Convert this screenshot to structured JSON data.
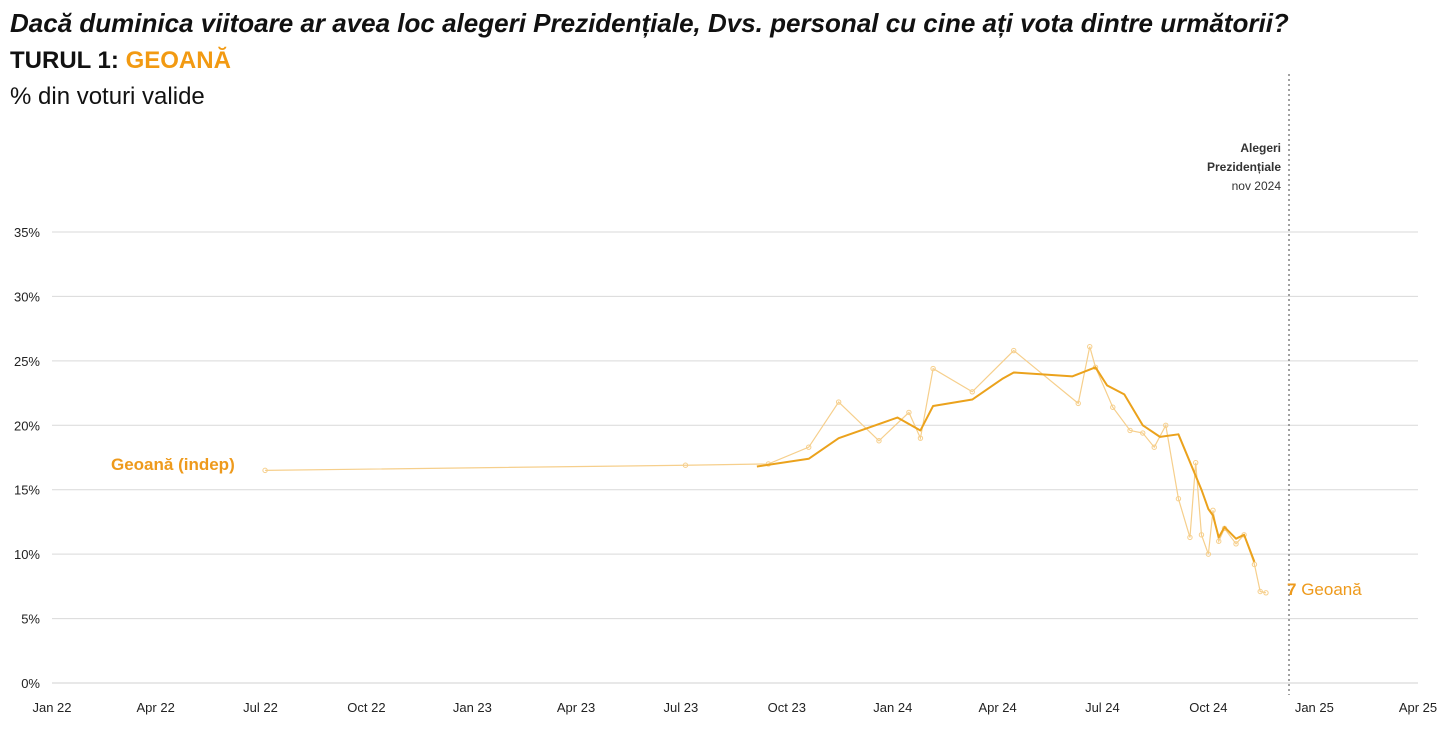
{
  "header": {
    "title": "Dacă duminica viitoare ar avea loc alegeri Prezidențiale, Dvs. personal cu cine ați vota dintre următorii?",
    "round_label": "TURUL 1:",
    "candidate_label": "GEOANĂ",
    "unit_label": "% din voturi valide"
  },
  "chart_data": {
    "type": "line",
    "title": "Dacă duminica viitoare ar avea loc alegeri Prezidențiale, Dvs. personal cu cine ați vota dintre următorii?",
    "subtitle": "TURUL 1: GEOANĂ",
    "ylabel": "% din voturi valide",
    "xlabel": "",
    "xlim": [
      "2022-01-01",
      "2025-04-01"
    ],
    "ylim": [
      0,
      35
    ],
    "y_ticks": [
      0,
      5,
      10,
      15,
      20,
      25,
      30,
      35
    ],
    "y_tick_labels": [
      "0%",
      "5%",
      "10%",
      "15%",
      "20%",
      "25%",
      "30%",
      "35%"
    ],
    "x_ticks": [
      "2022-01-01",
      "2022-04-01",
      "2022-07-01",
      "2022-10-01",
      "2023-01-01",
      "2023-04-01",
      "2023-07-01",
      "2023-10-01",
      "2024-01-01",
      "2024-04-01",
      "2024-07-01",
      "2024-10-01",
      "2025-01-01",
      "2025-04-01"
    ],
    "x_tick_labels": [
      "Jan 22",
      "Apr 22",
      "Jul 22",
      "Oct 22",
      "Jan 23",
      "Apr 23",
      "Jul 23",
      "Oct 23",
      "Jan 24",
      "Apr 24",
      "Jul 24",
      "Oct 24",
      "Jan 25",
      "Apr 25"
    ],
    "grid": "horizontal",
    "series": [
      {
        "name": "Geoană (indep)",
        "kind": "polls",
        "color": "#f6cf8c",
        "x": [
          "2022-07-05",
          "2023-07-05",
          "2023-09-15",
          "2023-10-20",
          "2023-11-15",
          "2023-12-20",
          "2024-01-15",
          "2024-01-25",
          "2024-02-05",
          "2024-03-10",
          "2024-04-15",
          "2024-06-10",
          "2024-06-20",
          "2024-06-25",
          "2024-07-10",
          "2024-07-25",
          "2024-08-05",
          "2024-08-15",
          "2024-08-25",
          "2024-09-05",
          "2024-09-15",
          "2024-09-20",
          "2024-09-25",
          "2024-10-01",
          "2024-10-05",
          "2024-10-10",
          "2024-10-15",
          "2024-10-25",
          "2024-11-01",
          "2024-11-10",
          "2024-11-15",
          "2024-11-20"
        ],
        "y": [
          16.5,
          16.9,
          17.0,
          18.3,
          21.8,
          18.8,
          21.0,
          19.0,
          24.4,
          22.6,
          25.8,
          21.7,
          26.1,
          24.5,
          21.4,
          19.6,
          19.4,
          18.3,
          20.0,
          14.3,
          11.3,
          17.1,
          11.5,
          10.0,
          13.4,
          11.0,
          12.0,
          10.8,
          11.5,
          9.2,
          7.1,
          7.0
        ]
      },
      {
        "name": "Geoană (indep) — trend",
        "kind": "trend",
        "color": "#eba21c",
        "x": [
          "2023-09-05",
          "2023-10-20",
          "2023-11-15",
          "2024-01-05",
          "2024-01-25",
          "2024-02-05",
          "2024-03-10",
          "2024-04-05",
          "2024-04-15",
          "2024-06-05",
          "2024-06-25",
          "2024-07-05",
          "2024-07-20",
          "2024-08-05",
          "2024-08-20",
          "2024-09-05",
          "2024-09-25",
          "2024-10-01",
          "2024-10-05",
          "2024-10-10",
          "2024-10-15",
          "2024-10-25",
          "2024-11-01",
          "2024-11-10"
        ],
        "y": [
          16.8,
          17.4,
          19.0,
          20.6,
          19.6,
          21.5,
          22.0,
          23.6,
          24.1,
          23.8,
          24.5,
          23.1,
          22.4,
          20.0,
          19.1,
          19.3,
          15.0,
          13.5,
          13.0,
          11.3,
          12.1,
          11.2,
          11.5,
          9.4
        ]
      }
    ],
    "annotations": [
      {
        "type": "vline",
        "x": "2024-12-10",
        "lines": [
          "Alegeri",
          "Prezidențiale",
          "nov 2024"
        ]
      },
      {
        "type": "series-label",
        "text": "Geoană (indep)"
      },
      {
        "type": "end-label",
        "value": "7",
        "text": "Geoană"
      }
    ]
  }
}
